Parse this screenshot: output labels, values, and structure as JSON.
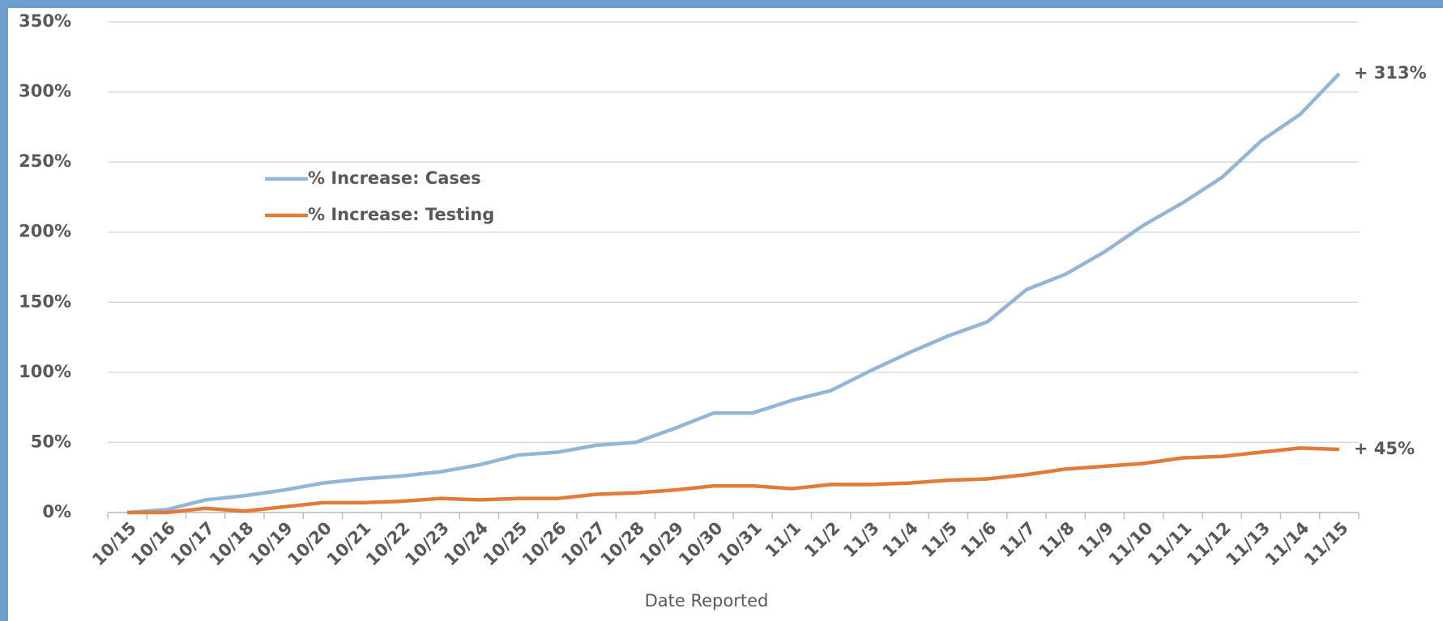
{
  "chart_data": {
    "type": "line",
    "x_label": "Date Reported",
    "categories": [
      "10/15",
      "10/16",
      "10/17",
      "10/18",
      "10/19",
      "10/20",
      "10/21",
      "10/22",
      "10/23",
      "10/24",
      "10/25",
      "10/26",
      "10/27",
      "10/28",
      "10/29",
      "10/30",
      "10/31",
      "11/1",
      "11/2",
      "11/3",
      "11/4",
      "11/5",
      "11/6",
      "11/7",
      "11/8",
      "11/9",
      "11/10",
      "11/11",
      "11/12",
      "11/13",
      "11/14",
      "11/15"
    ],
    "series": [
      {
        "name": "% Increase: Cases",
        "color": "#93b5d8",
        "end_label": "+ 313%",
        "values": [
          0,
          2,
          9,
          12,
          16,
          21,
          24,
          26,
          29,
          34,
          41,
          43,
          48,
          50,
          60,
          71,
          71,
          80,
          87,
          101,
          114,
          126,
          136,
          159,
          170,
          186,
          205,
          221,
          239,
          265,
          284,
          313
        ]
      },
      {
        "name": "% Increase: Testing",
        "color": "#e07b39",
        "end_label": "+ 45%",
        "values": [
          0,
          0,
          3,
          1,
          4,
          7,
          7,
          8,
          10,
          9,
          10,
          10,
          13,
          14,
          16,
          19,
          19,
          17,
          20,
          20,
          21,
          23,
          24,
          27,
          31,
          33,
          35,
          39,
          40,
          43,
          46,
          45
        ]
      }
    ],
    "ylim": [
      0,
      350
    ],
    "yticks": [
      {
        "value": 0,
        "label": "0%"
      },
      {
        "value": 50,
        "label": "50%"
      },
      {
        "value": 100,
        "label": "100%"
      },
      {
        "value": 150,
        "label": "150%"
      },
      {
        "value": 200,
        "label": "200%"
      },
      {
        "value": 250,
        "label": "250%"
      },
      {
        "value": 300,
        "label": "300%"
      },
      {
        "value": 350,
        "label": "350%"
      }
    ],
    "grid": true
  }
}
